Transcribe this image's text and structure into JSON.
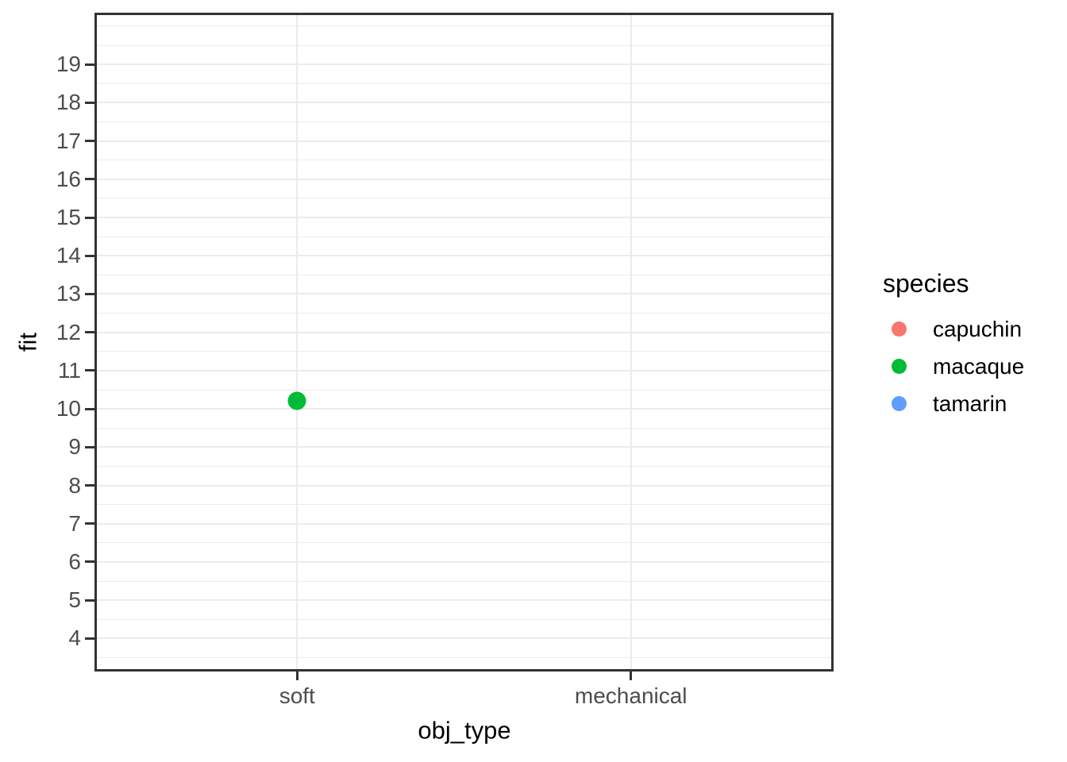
{
  "chart_data": {
    "type": "scatter",
    "title": "",
    "xlabel": "obj_type",
    "ylabel": "fit",
    "x_type": "categorical",
    "categories": [
      "soft",
      "mechanical"
    ],
    "y_ticks": [
      4,
      5,
      6,
      7,
      8,
      9,
      10,
      11,
      12,
      13,
      14,
      15,
      16,
      17,
      18,
      19
    ],
    "y_minor_gridlines": [
      3.5,
      4.5,
      5.5,
      6.5,
      7.5,
      8.5,
      9.5,
      10.5,
      11.5,
      12.5,
      13.5,
      14.5,
      15.5,
      16.5,
      17.5,
      18.5,
      19.5,
      20
    ],
    "ylim": [
      3.2,
      20.29
    ],
    "grid": {
      "horizontal_major": true,
      "horizontal_minor": true,
      "vertical_major": true,
      "vertical_minor": false
    },
    "legend": {
      "title": "species",
      "position": "right",
      "entries": [
        {
          "label": "capuchin",
          "color": "#F8766D"
        },
        {
          "label": "macaque",
          "color": "#00BA38"
        },
        {
          "label": "tamarin",
          "color": "#619CFF"
        }
      ]
    },
    "series": [
      {
        "name": "capuchin",
        "color": "#F8766D",
        "points": []
      },
      {
        "name": "macaque",
        "color": "#00BA38",
        "points": [
          {
            "x": "soft",
            "y": 10.2
          }
        ]
      },
      {
        "name": "tamarin",
        "color": "#619CFF",
        "points": []
      }
    ]
  },
  "style": {
    "panel_border_color": "#333333",
    "gridline_color": "#EBEBEB",
    "tick_color": "#333333",
    "tick_label_color": "#4D4D4D",
    "title_color": "#000000",
    "background": "#FFFFFF"
  }
}
